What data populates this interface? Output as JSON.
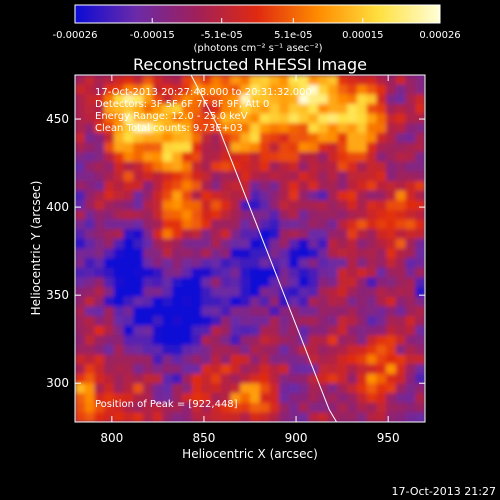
{
  "chart_data": {
    "type": "heatmap",
    "title": "Reconstructed RHESSI Image",
    "xlabel": "Heliocentric X (arcsec)",
    "ylabel": "Heliocentric Y (arcsec)",
    "xlim": [
      780,
      970
    ],
    "ylim": [
      278,
      475
    ],
    "x_ticks": [
      800,
      850,
      900,
      950
    ],
    "y_ticks": [
      300,
      350,
      400,
      450
    ],
    "colorbar": {
      "min": -0.00026,
      "max": 0.00026,
      "tick_values": [
        -0.00026,
        -0.00015,
        -5.1e-05,
        5.1e-05,
        0.00015,
        0.00026
      ],
      "tick_labels": [
        "-0.00026",
        "-0.00015",
        "-5.1e-05",
        "5.1e-05",
        "0.00015",
        "0.00026"
      ],
      "unit_label": "(photons cm⁻² s⁻¹ asec⁻²)",
      "colors": [
        "#0b0bd6",
        "#6a2aa8",
        "#a0205a",
        "#e02a10",
        "#ff8c00",
        "#ffe040",
        "#ffffd8"
      ]
    },
    "annotations": [
      "17-Oct-2013 20:27:48.000 to 20:31:32.000",
      "Detectors: 3F 5F 6F 7F 8F 9F, Att 0",
      "Energy Range: 12.0 - 25.0 keV",
      "Clean    Total counts: 9.73E+03"
    ],
    "peak_label": "Position of Peak = [922,448]",
    "limb_line": {
      "x": [
        843,
        858,
        873,
        888,
        903,
        918,
        922
      ],
      "y": [
        475,
        445,
        405,
        365,
        325,
        285,
        278
      ]
    }
  },
  "timestamp": "17-Oct-2013 21:27"
}
